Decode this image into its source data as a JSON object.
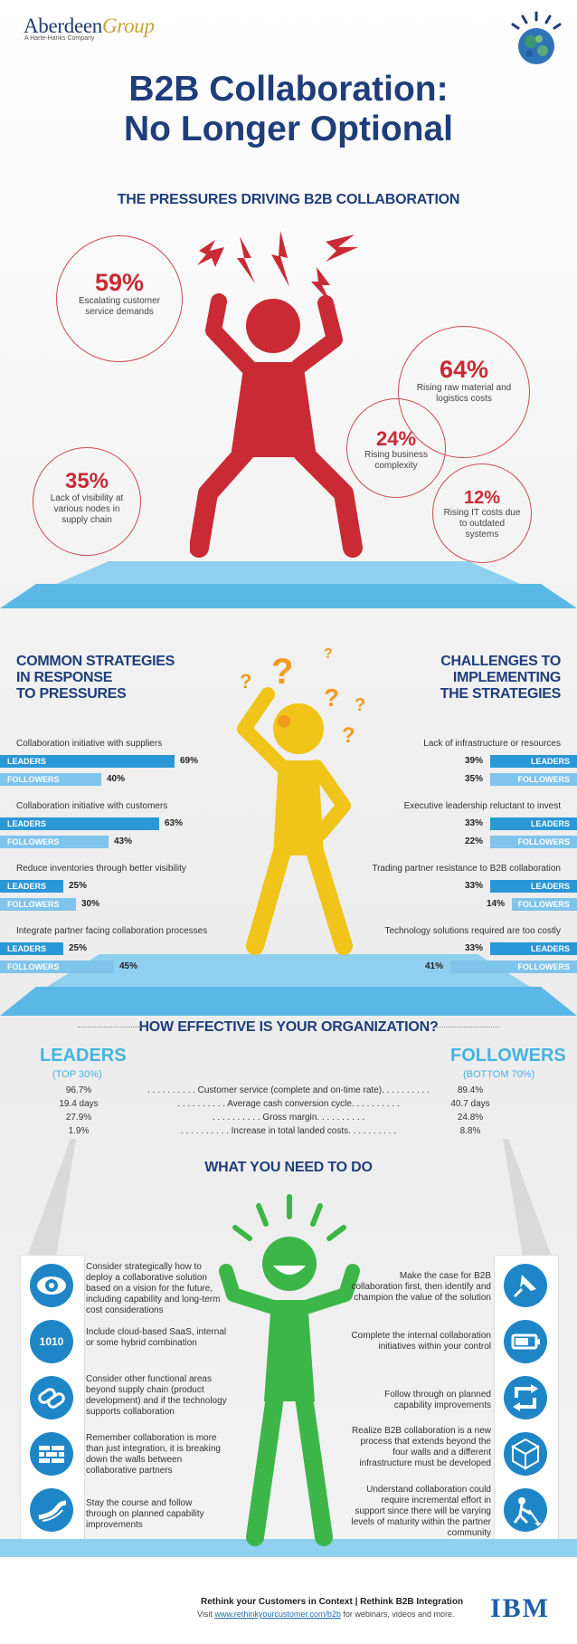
{
  "header": {
    "brand_a": "Aberdeen",
    "brand_b": "Group",
    "brand_sub": "A Harte-Hanks Company",
    "title_line1": "B2B Collaboration:",
    "title_line2": "No Longer Optional"
  },
  "pressures": {
    "title": "THE PRESSURES DRIVING B2B COLLABORATION",
    "stats": [
      {
        "pct": "59%",
        "text": "Escalating customer service demands"
      },
      {
        "pct": "64%",
        "text": "Rising raw material and logistics costs"
      },
      {
        "pct": "24%",
        "text": "Rising business complexity"
      },
      {
        "pct": "35%",
        "text": "Lack of visibility at various nodes in supply chain"
      },
      {
        "pct": "12%",
        "text": "Rising IT costs due to outdated systems"
      }
    ]
  },
  "strategies": {
    "title_lines": [
      "COMMON STRATEGIES",
      "IN RESPONSE",
      "TO PRESSURES"
    ],
    "leaders_label": "LEADERS",
    "followers_label": "FOLLOWERS",
    "items": [
      {
        "label": "Collaboration initiative with suppliers",
        "leaders": 69,
        "followers": 40,
        "leaders_txt": "69%",
        "followers_txt": "40%"
      },
      {
        "label": "Collaboration initiative with customers",
        "leaders": 63,
        "followers": 43,
        "leaders_txt": "63%",
        "followers_txt": "43%"
      },
      {
        "label": "Reduce inventories through better visibility",
        "leaders": 25,
        "followers": 30,
        "leaders_txt": "25%",
        "followers_txt": "30%"
      },
      {
        "label": "Integrate partner facing collaboration processes",
        "leaders": 25,
        "followers": 45,
        "leaders_txt": "25%",
        "followers_txt": "45%"
      }
    ]
  },
  "challenges": {
    "title_lines": [
      "CHALLENGES TO",
      "IMPLEMENTING",
      "THE STRATEGIES"
    ],
    "leaders_label": "LEADERS",
    "followers_label": "FOLLOWERS",
    "items": [
      {
        "label": "Lack of infrastructure or resources",
        "leaders": 39,
        "followers": 35,
        "leaders_txt": "39%",
        "followers_txt": "35%"
      },
      {
        "label": "Executive leadership reluctant to invest",
        "leaders": 33,
        "followers": 22,
        "leaders_txt": "33%",
        "followers_txt": "22%"
      },
      {
        "label": "Trading partner resistance to B2B collaboration",
        "leaders": 33,
        "followers": 14,
        "leaders_txt": "33%",
        "followers_txt": "14%"
      },
      {
        "label": "Technology solutions required are too costly",
        "leaders": 33,
        "followers": 41,
        "leaders_txt": "33%",
        "followers_txt": "41%"
      }
    ]
  },
  "effectiveness": {
    "title": "HOW EFFECTIVE IS YOUR ORGANIZATION?",
    "leaders_head": "LEADERS",
    "leaders_sub": "(TOP 30%)",
    "followers_head": "FOLLOWERS",
    "followers_sub": "(BOTTOM 70%)",
    "rows": [
      {
        "leaders": "96.7%",
        "metric": ". . . . . . . . . . Customer service (complete and on-time rate). . . . . . . . . .",
        "followers": "89.4%"
      },
      {
        "leaders": "19.4 days",
        "metric": ". . . . . . . . . . Average cash conversion cycle. . . . . . . . . .",
        "followers": "40.7 days"
      },
      {
        "leaders": "27.9%",
        "metric": ". . . . . . . . . . Gross margin. . . . . . . . . .",
        "followers": "24.8%"
      },
      {
        "leaders": "1.9%",
        "metric": ". . . . . . . . . . Increase in total landed costs. . . . . . . . . .",
        "followers": "8.8%"
      }
    ]
  },
  "todo": {
    "title": "WHAT YOU NEED TO DO",
    "left": [
      {
        "icon": "eye-icon",
        "text": "Consider strategically how to deploy a collaborative solution based on a vision for the future, including capability and long-term cost considerations"
      },
      {
        "icon": "binary-1010-icon",
        "icon_text": "1010",
        "text": "Include cloud-based SaaS, internal or some hybrid combination"
      },
      {
        "icon": "chain-link-icon",
        "text": "Consider other functional areas beyond supply chain (product development) and if the technology supports collaboration"
      },
      {
        "icon": "brick-wall-icon",
        "text": "Remember collaboration is more than just integration, it is breaking down the walls between collaborative partners"
      },
      {
        "icon": "road-icon",
        "text": "Stay the course and follow through on planned capability improvements"
      }
    ],
    "right": [
      {
        "icon": "pushpin-icon",
        "text": "Make the case for B2B collaboration first, then identify and champion the value of the solution"
      },
      {
        "icon": "battery-icon",
        "text": "Complete the internal collaboration initiatives within your control"
      },
      {
        "icon": "cycle-arrows-icon",
        "text": "Follow through on planned capability improvements"
      },
      {
        "icon": "network-cubes-icon",
        "text": "Realize B2B collaboration is a new process that extends beyond the four walls and a different infrastructure must be developed"
      },
      {
        "icon": "worker-shovel-icon",
        "text": "Understand collaboration could require incremental effort in support since there will be varying levels of maturity within the partner community"
      }
    ]
  },
  "footer": {
    "line1": "Rethink your Customers in Context | Rethink B2B Integration",
    "line2_a": "Visit ",
    "link": "www.rethinkyourcustomer.com/b2b",
    "line2_b": " for webinars, videos and more.",
    "ibm": "IBM"
  },
  "colors": {
    "navy": "#1e3d7a",
    "red": "#c92a34",
    "yellow": "#f0c419",
    "orange": "#f29a1f",
    "green": "#3cb649",
    "blue": "#2a97d6",
    "light_blue": "#7fc4ea"
  }
}
